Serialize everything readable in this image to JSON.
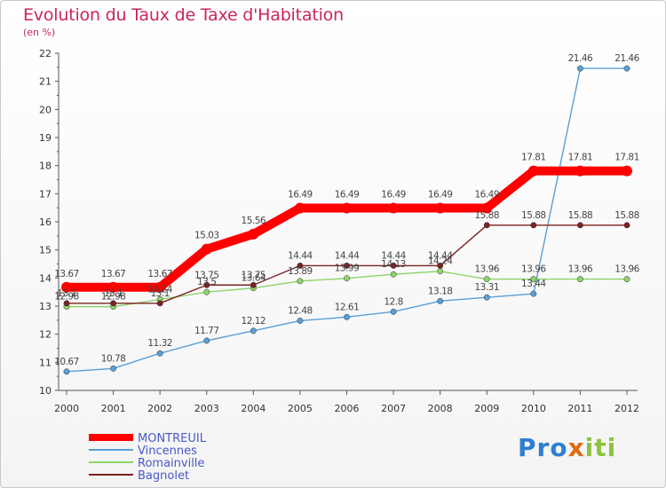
{
  "title": "Evolution du Taux de Taxe d'Habitation",
  "subtitle": "(en %)",
  "logo": {
    "p1": "Pro",
    "x": "x",
    "rest": "iti"
  },
  "chart_data": {
    "type": "line",
    "x": [
      "2000",
      "2001",
      "2002",
      "2003",
      "2004",
      "2005",
      "2006",
      "2007",
      "2008",
      "2009",
      "2010",
      "2011",
      "2012"
    ],
    "ylim": [
      10,
      22
    ],
    "yticks": [
      10,
      11,
      12,
      13,
      14,
      15,
      16,
      17,
      18,
      19,
      20,
      21,
      22
    ],
    "grid": false,
    "legend_position": "bottom-left",
    "series": [
      {
        "name": "MONTREUIL",
        "color": "#ff0000",
        "emphasis": true,
        "values": [
          13.67,
          13.67,
          13.67,
          15.03,
          15.56,
          16.49,
          16.49,
          16.49,
          16.49,
          16.49,
          17.81,
          17.81,
          17.81
        ],
        "labels": [
          "13.67",
          "13.67",
          "13.67",
          "15.03",
          "15.56",
          "16.49",
          "16.49",
          "16.49",
          "16.49",
          "16.49",
          "17.81",
          "17.81",
          "17.81"
        ]
      },
      {
        "name": "Vincennes",
        "color": "#5a9fd4",
        "values": [
          10.67,
          10.78,
          11.32,
          11.77,
          12.12,
          12.48,
          12.61,
          12.8,
          13.18,
          13.31,
          13.44,
          21.46,
          21.46
        ],
        "labels": [
          "10.67",
          "10.78",
          "11.32",
          "11.77",
          "12.12",
          "12.48",
          "12.61",
          "12.8",
          "13.18",
          "13.31",
          "13.44",
          "21.46",
          "21.46"
        ]
      },
      {
        "name": "Romainville",
        "color": "#8ed36b",
        "values": [
          12.98,
          12.98,
          13.24,
          13.5,
          13.64,
          13.89,
          13.99,
          14.13,
          14.24,
          13.96,
          13.96,
          13.96,
          13.96
        ],
        "labels": [
          "12.98",
          "12.98",
          "13.24",
          "13.5",
          "13.64",
          "13.89",
          "13.99",
          "14.13",
          "14.24",
          "13.96",
          "13.96",
          "13.96",
          "13.96"
        ]
      },
      {
        "name": "Bagnolet",
        "color": "#7a2323",
        "values": [
          13.1,
          13.1,
          13.1,
          13.75,
          13.75,
          14.44,
          14.44,
          14.44,
          14.44,
          15.88,
          15.88,
          15.88,
          15.88
        ],
        "labels": [
          "13.1",
          "13.1",
          "13.1",
          "13.75",
          "13.75",
          "14.44",
          "14.44",
          "14.44",
          "14.44",
          "15.88",
          "15.88",
          "15.88",
          "15.88"
        ]
      }
    ]
  }
}
